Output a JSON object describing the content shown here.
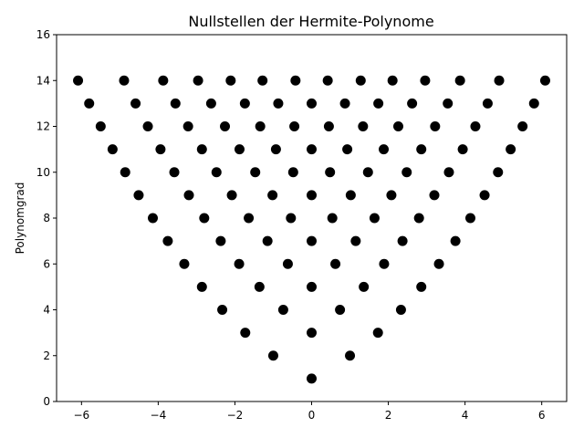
{
  "chart_data": {
    "type": "scatter",
    "title": "Nullstellen der Hermite-Polynome",
    "xlabel": "",
    "ylabel": "Polynomgrad",
    "xlim": [
      -6.65,
      6.65
    ],
    "ylim": [
      0,
      16
    ],
    "xticks": [
      -6,
      -4,
      -2,
      0,
      2,
      4,
      6
    ],
    "xtick_labels": [
      "−6",
      "−4",
      "−2",
      "0",
      "2",
      "4",
      "6"
    ],
    "yticks": [
      0,
      2,
      4,
      6,
      8,
      10,
      12,
      14,
      16
    ],
    "ytick_labels": [
      "0",
      "2",
      "4",
      "6",
      "8",
      "10",
      "12",
      "14",
      "16"
    ],
    "grid": false,
    "marker_color": "#000000",
    "points": [
      {
        "y": 1,
        "x": [
          0
        ]
      },
      {
        "y": 2,
        "x": [
          -1.0,
          1.0
        ]
      },
      {
        "y": 3,
        "x": [
          -1.73,
          0,
          1.73
        ]
      },
      {
        "y": 4,
        "x": [
          -2.33,
          -0.74,
          0.74,
          2.33
        ]
      },
      {
        "y": 5,
        "x": [
          -2.86,
          -1.36,
          0,
          1.36,
          2.86
        ]
      },
      {
        "y": 6,
        "x": [
          -3.32,
          -1.89,
          -0.62,
          0.62,
          1.89,
          3.32
        ]
      },
      {
        "y": 7,
        "x": [
          -3.75,
          -2.37,
          -1.15,
          0,
          1.15,
          2.37,
          3.75
        ]
      },
      {
        "y": 8,
        "x": [
          -4.14,
          -2.8,
          -1.64,
          -0.54,
          0.54,
          1.64,
          2.8,
          4.14
        ]
      },
      {
        "y": 9,
        "x": [
          -4.51,
          -3.2,
          -2.08,
          -1.02,
          0,
          1.02,
          2.08,
          3.2,
          4.51
        ]
      },
      {
        "y": 10,
        "x": [
          -4.86,
          -3.58,
          -2.48,
          -1.47,
          -0.48,
          0.48,
          1.47,
          2.48,
          3.58,
          4.86
        ]
      },
      {
        "y": 11,
        "x": [
          -5.19,
          -3.94,
          -2.86,
          -1.88,
          -0.93,
          0,
          0.93,
          1.88,
          2.86,
          3.94,
          5.19
        ]
      },
      {
        "y": 12,
        "x": [
          -5.5,
          -4.27,
          -3.22,
          -2.26,
          -1.34,
          -0.45,
          0.45,
          1.34,
          2.26,
          3.22,
          4.27,
          5.5
        ]
      },
      {
        "y": 13,
        "x": [
          -5.8,
          -4.59,
          -3.55,
          -2.62,
          -1.74,
          -0.87,
          0,
          0.87,
          1.74,
          2.62,
          3.55,
          4.59,
          5.8
        ]
      },
      {
        "y": 14,
        "x": [
          -6.09,
          -4.89,
          -3.87,
          -2.96,
          -2.11,
          -1.28,
          -0.42,
          0.42,
          1.28,
          2.11,
          2.96,
          3.87,
          4.89,
          6.09
        ]
      }
    ]
  }
}
